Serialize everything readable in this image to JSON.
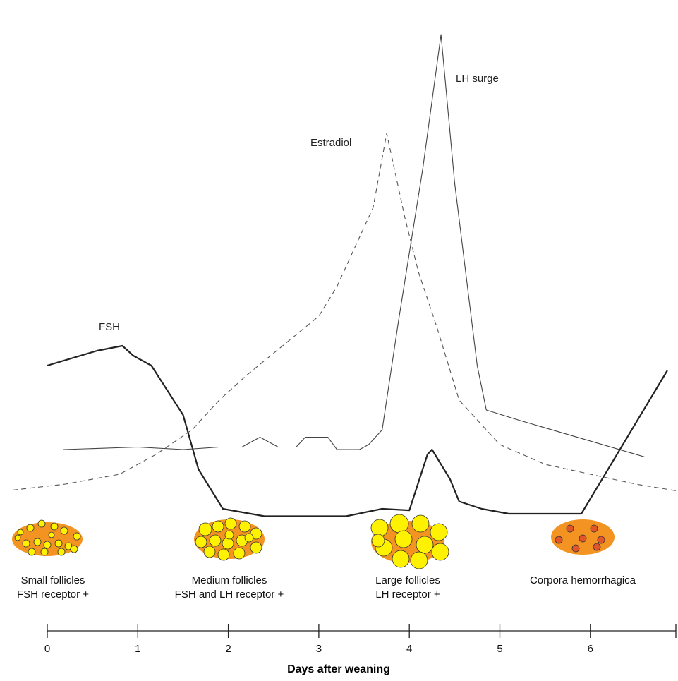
{
  "chart_data": {
    "type": "line",
    "xlabel": "Days after weaning",
    "ylabel": "",
    "xlim": [
      0,
      7
    ],
    "ylim": [
      0,
      100
    ],
    "x_ticks": [
      0,
      1,
      2,
      3,
      4,
      5,
      6
    ],
    "grid": false,
    "series": [
      {
        "name": "FSH",
        "style": "thick-solid",
        "color": "#222222",
        "points": [
          [
            0.0,
            26
          ],
          [
            0.55,
            29
          ],
          [
            0.83,
            30
          ],
          [
            0.95,
            28
          ],
          [
            1.15,
            26
          ],
          [
            1.5,
            16
          ],
          [
            1.67,
            5
          ],
          [
            1.94,
            -3
          ],
          [
            2.4,
            -4.5
          ],
          [
            3.3,
            -4.5
          ],
          [
            3.7,
            -3
          ],
          [
            4.0,
            -3.3
          ],
          [
            4.2,
            8
          ],
          [
            4.25,
            9
          ],
          [
            4.45,
            3
          ],
          [
            4.55,
            -1.5
          ],
          [
            4.8,
            -3
          ],
          [
            5.1,
            -4
          ],
          [
            5.9,
            -4
          ],
          [
            6.85,
            25
          ]
        ]
      },
      {
        "name": "Estradiol",
        "style": "dashed",
        "color": "#555555",
        "points": [
          [
            -0.38,
            0.8
          ],
          [
            0.2,
            2
          ],
          [
            0.8,
            4
          ],
          [
            1.2,
            8
          ],
          [
            1.6,
            13
          ],
          [
            1.9,
            19
          ],
          [
            2.2,
            24
          ],
          [
            2.6,
            30
          ],
          [
            3.0,
            36
          ],
          [
            3.2,
            42
          ],
          [
            3.4,
            50
          ],
          [
            3.6,
            58
          ],
          [
            3.75,
            73
          ],
          [
            3.95,
            56
          ],
          [
            4.1,
            45
          ],
          [
            4.3,
            34
          ],
          [
            4.55,
            19
          ],
          [
            4.8,
            14
          ],
          [
            5.0,
            10
          ],
          [
            5.5,
            6
          ],
          [
            6.0,
            4
          ],
          [
            6.5,
            2
          ],
          [
            7.0,
            0.5
          ]
        ]
      },
      {
        "name": "LH surge",
        "style": "thin-solid",
        "color": "#444444",
        "points": [
          [
            0.18,
            9
          ],
          [
            1.0,
            9.5
          ],
          [
            1.5,
            9
          ],
          [
            1.9,
            9.5
          ],
          [
            2.15,
            9.5
          ],
          [
            2.35,
            11.5
          ],
          [
            2.55,
            9.5
          ],
          [
            2.75,
            9.5
          ],
          [
            2.85,
            11.5
          ],
          [
            3.1,
            11.5
          ],
          [
            3.2,
            9
          ],
          [
            3.45,
            9
          ],
          [
            3.55,
            10
          ],
          [
            3.7,
            13
          ],
          [
            3.88,
            35
          ],
          [
            4.15,
            66
          ],
          [
            4.35,
            93
          ],
          [
            4.5,
            63
          ],
          [
            4.75,
            26
          ],
          [
            4.85,
            17
          ],
          [
            5.2,
            15
          ],
          [
            6.6,
            7.5
          ]
        ]
      }
    ],
    "annotations": [
      {
        "text": "FSH",
        "series": "FSH"
      },
      {
        "text": "Estradiol",
        "series": "Estradiol"
      },
      {
        "text": "LH surge",
        "series": "LH surge"
      }
    ],
    "stages": [
      {
        "day": 0.1,
        "line1": "Small follicles",
        "line2": "FSH receptor +",
        "kind": "small"
      },
      {
        "day": 2.2,
        "line1": "Medium follicles",
        "line2": "FSH and LH receptor +",
        "kind": "medium"
      },
      {
        "day": 4.0,
        "line1": "Large follicles",
        "line2": "LH receptor +",
        "kind": "large"
      },
      {
        "day": 6.0,
        "line1": "Corpora hemorrhagica",
        "line2": "",
        "kind": "corpora"
      }
    ],
    "colors": {
      "ovary": "#f39321",
      "follicle": "#fff200",
      "corpus": "#e2542a",
      "outline": "#333333"
    }
  }
}
